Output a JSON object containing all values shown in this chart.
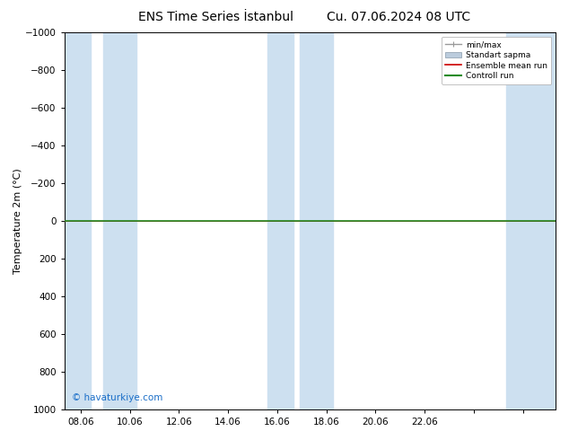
{
  "title_left": "ENS Time Series İstanbul",
  "title_right": "Cu. 07.06.2024 08 UTC",
  "ylabel": "Temperature 2m (°C)",
  "ylim": [
    -1000,
    1000
  ],
  "yticks": [
    -1000,
    -800,
    -600,
    -400,
    -200,
    0,
    200,
    400,
    600,
    800,
    1000
  ],
  "xlim": [
    0,
    15
  ],
  "xtick_positions": [
    0.5,
    2.0,
    3.5,
    5.0,
    6.5,
    8.0,
    9.5,
    11.0,
    12.5,
    14.0
  ],
  "xtick_labels": [
    "08.06",
    "10.06",
    "12.06",
    "14.06",
    "16.06",
    "18.06",
    "20.06",
    "22.06",
    "",
    ""
  ],
  "shaded_bands": [
    [
      0.0,
      0.8
    ],
    [
      1.2,
      2.2
    ],
    [
      6.2,
      7.0
    ],
    [
      7.2,
      8.2
    ],
    [
      13.5,
      15.0
    ]
  ],
  "shaded_color": "#cde0f0",
  "control_run_color": "#228b22",
  "ensemble_mean_color": "#cc0000",
  "min_max_color": "#aaaaaa",
  "std_color": "#bbccdd",
  "watermark": "© havaturkiye.com",
  "watermark_color": "#1a6ec8",
  "background_color": "#ffffff",
  "legend_entries": [
    "min/max",
    "Standart sapma",
    "Ensemble mean run",
    "Controll run"
  ],
  "legend_colors": [
    "#999999",
    "#bbccdd",
    "#cc0000",
    "#228b22"
  ],
  "title_fontsize": 10,
  "axis_fontsize": 8,
  "tick_fontsize": 7.5
}
